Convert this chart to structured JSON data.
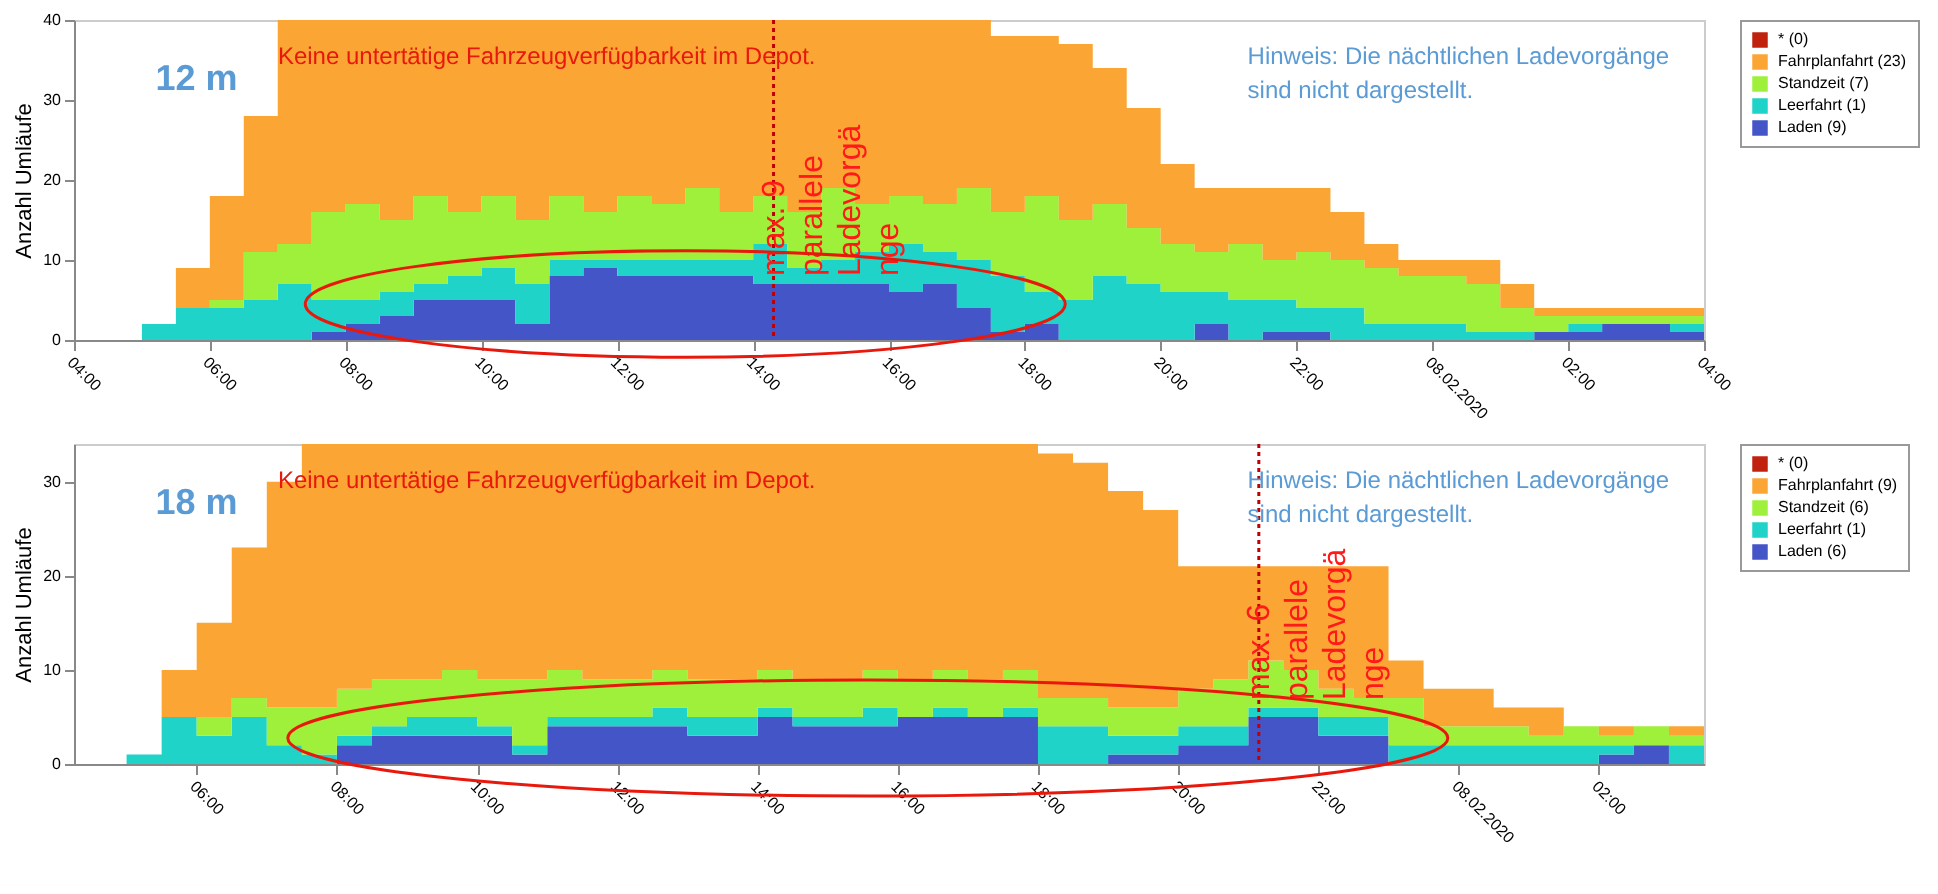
{
  "chart_data": [
    {
      "type": "area",
      "stacked": true,
      "ylabel": "Anzahl Umläufe",
      "legend": "top right",
      "grid": false,
      "annotations": [
        "12 m",
        "Keine untertätige Fahrzeugverfügbarkeit  im Depot.",
        "Hinweis: Die nächtlichen Ladevorgänge sind nicht dargestellt."
      ],
      "ref_lines": [
        {
          "axis": "x",
          "value": "2020-02-07T14:18",
          "label": "max. 9 parallele Ladevorgänge",
          "color": "#c00000",
          "line_style": "dotted"
        }
      ],
      "xlim": [
        "2020-02-07T04:00",
        "2020-02-08T04:00"
      ],
      "xticks": [
        {
          "value": "2020-02-07T04:00",
          "label": "04:00"
        },
        {
          "value": "2020-02-07T06:00",
          "label": "06:00"
        },
        {
          "value": "2020-02-07T08:00",
          "label": "08:00"
        },
        {
          "value": "2020-02-07T10:00",
          "label": "10:00"
        },
        {
          "value": "2020-02-07T12:00",
          "label": "12:00"
        },
        {
          "value": "2020-02-07T14:00",
          "label": "14:00"
        },
        {
          "value": "2020-02-07T16:00",
          "label": "16:00"
        },
        {
          "value": "2020-02-07T18:00",
          "label": "18:00"
        },
        {
          "value": "2020-02-07T20:00",
          "label": "20:00"
        },
        {
          "value": "2020-02-07T22:00",
          "label": "22:00"
        },
        {
          "value": "2020-02-08T00:00",
          "label": "08.02.2020"
        },
        {
          "value": "2020-02-08T02:00",
          "label": "02:00"
        },
        {
          "value": "2020-02-08T04:00",
          "label": "04:00"
        }
      ],
      "ylim": [
        0,
        40
      ],
      "yticks": [
        0,
        10,
        20,
        30,
        40
      ],
      "x": [
        "2020-02-07T04:00",
        "2020-02-07T04:30",
        "2020-02-07T05:00",
        "2020-02-07T05:30",
        "2020-02-07T06:00",
        "2020-02-07T06:30",
        "2020-02-07T07:00",
        "2020-02-07T07:30",
        "2020-02-07T08:00",
        "2020-02-07T08:30",
        "2020-02-07T09:00",
        "2020-02-07T09:30",
        "2020-02-07T10:00",
        "2020-02-07T10:30",
        "2020-02-07T11:00",
        "2020-02-07T11:30",
        "2020-02-07T12:00",
        "2020-02-07T12:30",
        "2020-02-07T13:00",
        "2020-02-07T13:30",
        "2020-02-07T14:00",
        "2020-02-07T14:30",
        "2020-02-07T15:00",
        "2020-02-07T15:30",
        "2020-02-07T16:00",
        "2020-02-07T16:30",
        "2020-02-07T17:00",
        "2020-02-07T17:30",
        "2020-02-07T18:00",
        "2020-02-07T18:30",
        "2020-02-07T19:00",
        "2020-02-07T19:30",
        "2020-02-07T20:00",
        "2020-02-07T20:30",
        "2020-02-07T21:00",
        "2020-02-07T21:30",
        "2020-02-07T22:00",
        "2020-02-07T22:30",
        "2020-02-07T23:00",
        "2020-02-07T23:30",
        "2020-02-08T00:00",
        "2020-02-08T00:30",
        "2020-02-08T01:00",
        "2020-02-08T01:30",
        "2020-02-08T02:00",
        "2020-02-08T02:30",
        "2020-02-08T03:00",
        "2020-02-08T03:30",
        "2020-02-08T04:00"
      ],
      "series": [
        {
          "name": "Laden (9)",
          "color": "#4455c8",
          "values": [
            0,
            0,
            0,
            0,
            0,
            0,
            0,
            1,
            2,
            3,
            5,
            5,
            5,
            2,
            8,
            9,
            8,
            8,
            8,
            8,
            7,
            7,
            7,
            7,
            6,
            7,
            4,
            1,
            2,
            0,
            0,
            0,
            0,
            2,
            0,
            1,
            1,
            0,
            0,
            0,
            0,
            0,
            0,
            1,
            1,
            2,
            2,
            1,
            1
          ]
        },
        {
          "name": "Leerfahrt (1)",
          "color": "#1fd3c8",
          "values": [
            0,
            0,
            2,
            4,
            4,
            5,
            7,
            4,
            3,
            3,
            2,
            3,
            4,
            5,
            2,
            1,
            2,
            2,
            2,
            2,
            5,
            2,
            3,
            4,
            6,
            4,
            6,
            7,
            4,
            5,
            8,
            7,
            6,
            4,
            5,
            4,
            3,
            4,
            2,
            2,
            2,
            1,
            1,
            0,
            1,
            0,
            0,
            1,
            1
          ]
        },
        {
          "name": "Standzeit (7)",
          "color": "#9ef03a",
          "values": [
            0,
            0,
            0,
            0,
            1,
            6,
            5,
            11,
            12,
            9,
            11,
            8,
            9,
            8,
            8,
            6,
            8,
            7,
            9,
            6,
            6,
            7,
            9,
            6,
            6,
            6,
            9,
            8,
            12,
            10,
            9,
            7,
            6,
            5,
            7,
            5,
            7,
            6,
            7,
            6,
            6,
            6,
            3,
            2,
            1,
            1,
            1,
            1,
            1
          ]
        },
        {
          "name": "Fahrplanfahrt (23)",
          "color": "#fba535",
          "values": [
            0,
            0,
            0,
            5,
            13,
            17,
            28,
            24,
            23,
            25,
            22,
            24,
            22,
            25,
            22,
            24,
            22,
            23,
            21,
            24,
            22,
            24,
            21,
            23,
            22,
            23,
            21,
            22,
            20,
            22,
            17,
            15,
            10,
            8,
            7,
            9,
            8,
            6,
            3,
            2,
            2,
            3,
            3,
            1,
            1,
            1,
            1,
            1,
            1
          ]
        },
        {
          "name": "* (0)",
          "color": "#c0220e",
          "values": [
            null,
            null,
            null,
            null,
            null,
            null,
            null,
            null,
            null,
            null,
            null,
            null,
            null,
            null,
            null,
            null,
            null,
            null,
            null,
            null,
            null,
            null,
            null,
            null,
            null,
            null,
            null,
            null,
            null,
            null,
            null,
            null,
            null,
            null,
            null,
            null,
            null,
            null,
            null,
            null,
            null,
            null,
            null,
            null,
            null,
            null,
            null,
            null,
            null
          ]
        }
      ]
    },
    {
      "type": "area",
      "stacked": true,
      "ylabel": "Anzahl Umläufe",
      "legend": "top right",
      "grid": false,
      "annotations": [
        "18 m",
        "Keine untertätige Fahrzeugverfügbarkeit  im Depot.",
        "Hinweis: Die nächtlichen Ladevorgänge sind nicht dargestellt."
      ],
      "ref_lines": [
        {
          "axis": "x",
          "value": "2020-02-07T21:09",
          "label": "max. 6 parallele Ladevorgänge",
          "color": "#c00000",
          "line_style": "dotted"
        }
      ],
      "xlim": [
        "2020-02-07T04:15",
        "2020-02-08T03:30"
      ],
      "xticks": [
        {
          "value": "2020-02-07T06:00",
          "label": "06:00"
        },
        {
          "value": "2020-02-07T08:00",
          "label": "08:00"
        },
        {
          "value": "2020-02-07T10:00",
          "label": "10:00"
        },
        {
          "value": "2020-02-07T12:00",
          "label": "12:00"
        },
        {
          "value": "2020-02-07T14:00",
          "label": "14:00"
        },
        {
          "value": "2020-02-07T16:00",
          "label": "16:00"
        },
        {
          "value": "2020-02-07T18:00",
          "label": "18:00"
        },
        {
          "value": "2020-02-07T20:00",
          "label": "20:00"
        },
        {
          "value": "2020-02-07T22:00",
          "label": "22:00"
        },
        {
          "value": "2020-02-08T00:00",
          "label": "08.02.2020"
        },
        {
          "value": "2020-02-08T02:00",
          "label": "02:00"
        }
      ],
      "ylim": [
        0,
        34
      ],
      "yticks": [
        0,
        10,
        20,
        30
      ],
      "x": [
        "2020-02-07T04:30",
        "2020-02-07T05:00",
        "2020-02-07T05:30",
        "2020-02-07T06:00",
        "2020-02-07T06:30",
        "2020-02-07T07:00",
        "2020-02-07T07:30",
        "2020-02-07T08:00",
        "2020-02-07T08:30",
        "2020-02-07T09:00",
        "2020-02-07T09:30",
        "2020-02-07T10:00",
        "2020-02-07T10:30",
        "2020-02-07T11:00",
        "2020-02-07T11:30",
        "2020-02-07T12:00",
        "2020-02-07T12:30",
        "2020-02-07T13:00",
        "2020-02-07T13:30",
        "2020-02-07T14:00",
        "2020-02-07T14:30",
        "2020-02-07T15:00",
        "2020-02-07T15:30",
        "2020-02-07T16:00",
        "2020-02-07T16:30",
        "2020-02-07T17:00",
        "2020-02-07T17:30",
        "2020-02-07T18:00",
        "2020-02-07T18:30",
        "2020-02-07T19:00",
        "2020-02-07T19:30",
        "2020-02-07T20:00",
        "2020-02-07T20:30",
        "2020-02-07T21:00",
        "2020-02-07T21:30",
        "2020-02-07T22:00",
        "2020-02-07T22:30",
        "2020-02-07T23:00",
        "2020-02-07T23:30",
        "2020-02-08T00:00",
        "2020-02-08T00:30",
        "2020-02-08T01:00",
        "2020-02-08T01:30",
        "2020-02-08T02:00",
        "2020-02-08T02:30",
        "2020-02-08T03:00",
        "2020-02-08T03:30"
      ],
      "series": [
        {
          "name": "Laden (6)",
          "color": "#4455c8",
          "values": [
            0,
            0,
            0,
            0,
            0,
            0,
            0,
            2,
            3,
            3,
            3,
            3,
            1,
            4,
            4,
            4,
            4,
            3,
            3,
            5,
            4,
            4,
            4,
            5,
            5,
            5,
            5,
            0,
            0,
            1,
            1,
            2,
            2,
            5,
            5,
            3,
            3,
            0,
            0,
            0,
            0,
            0,
            0,
            1,
            2,
            0,
            0
          ]
        },
        {
          "name": "Leerfahrt (1)",
          "color": "#1fd3c8",
          "values": [
            0,
            1,
            5,
            3,
            5,
            2,
            1,
            1,
            1,
            2,
            2,
            1,
            1,
            1,
            1,
            1,
            2,
            2,
            2,
            1,
            1,
            1,
            2,
            0,
            1,
            0,
            1,
            4,
            4,
            2,
            2,
            2,
            2,
            1,
            1,
            2,
            2,
            2,
            2,
            2,
            2,
            2,
            2,
            1,
            0,
            2,
            2
          ]
        },
        {
          "name": "Standzeit (6)",
          "color": "#9ef03a",
          "values": [
            0,
            0,
            0,
            2,
            2,
            4,
            5,
            5,
            5,
            4,
            5,
            5,
            7,
            5,
            4,
            4,
            4,
            4,
            4,
            4,
            4,
            4,
            4,
            4,
            4,
            4,
            4,
            3,
            3,
            3,
            3,
            4,
            5,
            5,
            4,
            3,
            2,
            5,
            2,
            2,
            2,
            1,
            2,
            1,
            2,
            1,
            1
          ]
        },
        {
          "name": "Fahrplanfahrt (9)",
          "color": "#fba535",
          "values": [
            0,
            0,
            5,
            10,
            16,
            24,
            28,
            26,
            25,
            25,
            24,
            25,
            25,
            24,
            25,
            25,
            24,
            25,
            25,
            24,
            25,
            25,
            24,
            25,
            24,
            25,
            24,
            26,
            25,
            23,
            21,
            13,
            12,
            10,
            11,
            13,
            14,
            4,
            4,
            4,
            2,
            3,
            0,
            1,
            0,
            1,
            1
          ]
        },
        {
          "name": "* (0)",
          "color": "#c0220e",
          "values": [
            null,
            null,
            null,
            null,
            null,
            null,
            null,
            null,
            null,
            null,
            null,
            null,
            null,
            null,
            null,
            null,
            null,
            null,
            null,
            null,
            null,
            null,
            null,
            null,
            null,
            null,
            null,
            null,
            null,
            null,
            null,
            null,
            null,
            null,
            null,
            null,
            null,
            null,
            null,
            null,
            null,
            null,
            null,
            null,
            null,
            null,
            null
          ]
        }
      ]
    }
  ]
}
